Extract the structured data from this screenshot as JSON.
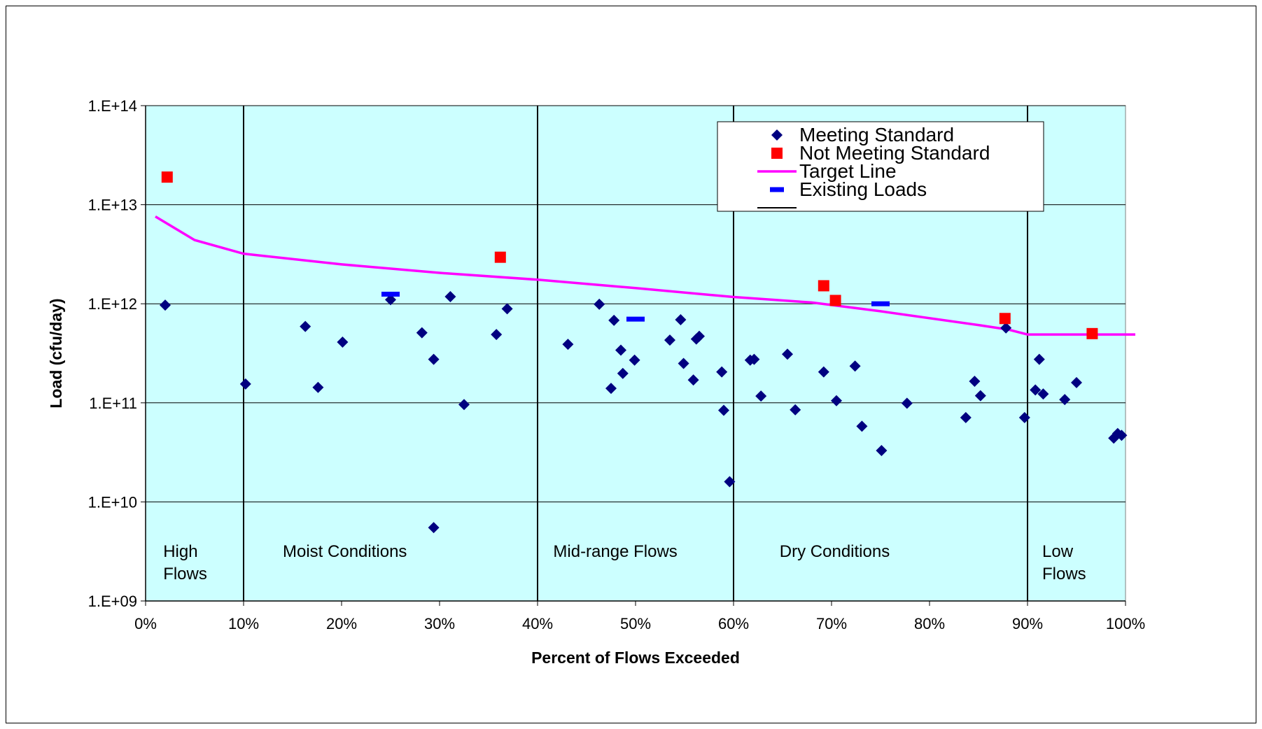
{
  "chart_data": {
    "type": "scatter",
    "title": "",
    "xlabel": "Percent of Flows Exceeded",
    "ylabel": "Load (cfu/day)",
    "xlim": [
      0,
      100
    ],
    "ylim": [
      1000000000.0,
      100000000000000.0
    ],
    "y_scale": "log",
    "grid": true,
    "legend_position": "top-right",
    "x_tick_labels": [
      "0%",
      "10%",
      "20%",
      "30%",
      "40%",
      "50%",
      "60%",
      "70%",
      "80%",
      "90%",
      "100%"
    ],
    "y_tick_labels": [
      "1.E+09",
      "1.E+10",
      "1.E+11",
      "1.E+12",
      "1.E+13",
      "1.E+14"
    ],
    "zone_boundaries": [
      10,
      40,
      60,
      90
    ],
    "regions": [
      {
        "lines": [
          "High",
          "Flows"
        ],
        "x": 1.8
      },
      {
        "lines": [
          "Moist Conditions"
        ],
        "x": 14
      },
      {
        "lines": [
          "Mid-range Flows"
        ],
        "x": 41.6
      },
      {
        "lines": [
          "Dry Conditions"
        ],
        "x": 64.7
      },
      {
        "lines": [
          "Low",
          "Flows"
        ],
        "x": 91.5
      }
    ],
    "colors": {
      "plot_background": "#ccffff",
      "meeting": "#000080",
      "not_meeting": "#ff0000",
      "target": "#ff00ff",
      "existing": "#0000ff",
      "zone_line": "#000000",
      "grid": "#000000"
    },
    "series": [
      {
        "name": "Meeting Standard",
        "marker": "diamond",
        "points": [
          [
            2,
            970000000000.0
          ],
          [
            10.2,
            155000000000.0
          ],
          [
            16.3,
            590000000000.0
          ],
          [
            17.6,
            143000000000.0
          ],
          [
            20.1,
            410000000000.0
          ],
          [
            25,
            1100000000000.0
          ],
          [
            28.2,
            510000000000.0
          ],
          [
            29.4,
            275000000000.0
          ],
          [
            29.4,
            5500000000.0
          ],
          [
            31.1,
            1180000000000.0
          ],
          [
            32.5,
            96000000000.0
          ],
          [
            35.8,
            490000000000.0
          ],
          [
            36.9,
            890000000000.0
          ],
          [
            43.1,
            390000000000.0
          ],
          [
            46.3,
            990000000000.0
          ],
          [
            47.5,
            140000000000.0
          ],
          [
            47.8,
            680000000000.0
          ],
          [
            48.5,
            340000000000.0
          ],
          [
            48.7,
            198000000000.0
          ],
          [
            49.9,
            270000000000.0
          ],
          [
            53.5,
            430000000000.0
          ],
          [
            54.6,
            690000000000.0
          ],
          [
            54.9,
            250000000000.0
          ],
          [
            55.9,
            170000000000.0
          ],
          [
            56.2,
            440000000000.0
          ],
          [
            56.5,
            470000000000.0
          ],
          [
            58.8,
            205000000000.0
          ],
          [
            59,
            84000000000.0
          ],
          [
            59.6,
            16000000000.0
          ],
          [
            61.7,
            270000000000.0
          ],
          [
            62.1,
            275000000000.0
          ],
          [
            62.8,
            117000000000.0
          ],
          [
            65.5,
            310000000000.0
          ],
          [
            66.3,
            85000000000.0
          ],
          [
            69.2,
            205000000000.0
          ],
          [
            70.5,
            105000000000.0
          ],
          [
            72.4,
            235000000000.0
          ],
          [
            73.1,
            58000000000.0
          ],
          [
            75.1,
            33000000000.0
          ],
          [
            77.7,
            99000000000.0
          ],
          [
            83.7,
            71000000000.0
          ],
          [
            84.6,
            165000000000.0
          ],
          [
            85.2,
            118000000000.0
          ],
          [
            87.8,
            570000000000.0
          ],
          [
            89.7,
            71000000000.0
          ],
          [
            90.8,
            135000000000.0
          ],
          [
            91.2,
            275000000000.0
          ],
          [
            91.6,
            123000000000.0
          ],
          [
            93.8,
            108000000000.0
          ],
          [
            95,
            160000000000.0
          ],
          [
            98.8,
            44000000000.0
          ],
          [
            99.2,
            49000000000.0
          ],
          [
            99.6,
            47000000000.0
          ]
        ]
      },
      {
        "name": "Not Meeting Standard",
        "marker": "square",
        "points": [
          [
            2.2,
            19000000000000.0
          ],
          [
            36.2,
            2950000000000.0
          ],
          [
            69.2,
            1520000000000.0
          ],
          [
            70.4,
            1080000000000.0
          ],
          [
            87.7,
            710000000000.0
          ],
          [
            96.6,
            500000000000.0
          ]
        ]
      },
      {
        "name": "Target Line",
        "marker": "line",
        "points": [
          [
            1,
            7600000000000.0
          ],
          [
            5,
            4400000000000.0
          ],
          [
            10,
            3200000000000.0
          ],
          [
            20,
            2500000000000.0
          ],
          [
            30,
            2050000000000.0
          ],
          [
            40,
            1750000000000.0
          ],
          [
            50,
            1440000000000.0
          ],
          [
            60,
            1170000000000.0
          ],
          [
            68,
            1030000000000.0
          ],
          [
            75,
            840000000000.0
          ],
          [
            85,
            610000000000.0
          ],
          [
            88,
            550000000000.0
          ],
          [
            90,
            490000000000.0
          ],
          [
            100,
            490000000000.0
          ],
          [
            101,
            490000000000.0
          ]
        ]
      },
      {
        "name": "Existing Loads",
        "marker": "dash",
        "points": [
          [
            25,
            1250000000000.0
          ],
          [
            50,
            700000000000.0
          ],
          [
            75,
            1000000000000.0
          ]
        ]
      }
    ],
    "legend_extra_marker": "zone-line"
  }
}
